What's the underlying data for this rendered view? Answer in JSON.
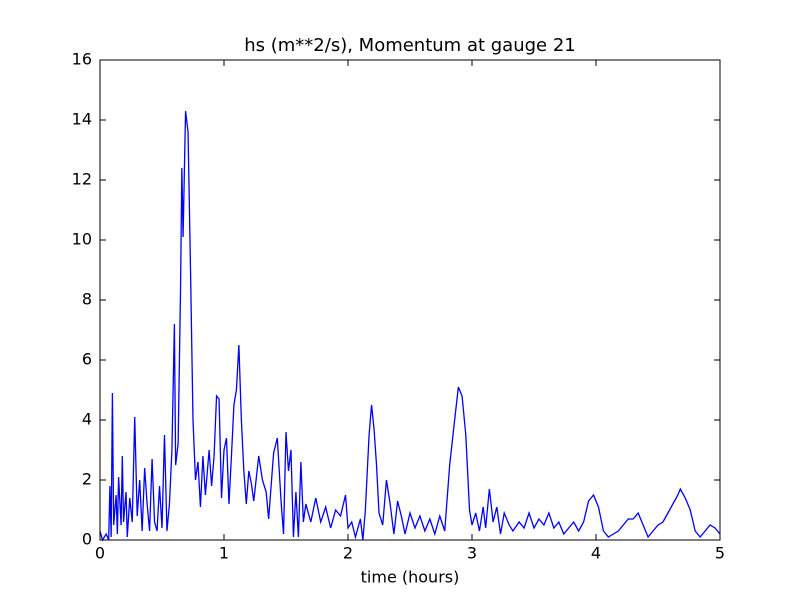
{
  "chart_data": {
    "type": "line",
    "title": "hs (m**2/s), Momentum at gauge 21",
    "xlabel": "time (hours)",
    "x": [
      0.0,
      0.02,
      0.05,
      0.07,
      0.08,
      0.09,
      0.1,
      0.11,
      0.13,
      0.14,
      0.15,
      0.17,
      0.18,
      0.19,
      0.21,
      0.22,
      0.24,
      0.26,
      0.28,
      0.3,
      0.32,
      0.34,
      0.36,
      0.38,
      0.4,
      0.42,
      0.44,
      0.46,
      0.48,
      0.5,
      0.52,
      0.54,
      0.56,
      0.58,
      0.6,
      0.61,
      0.63,
      0.65,
      0.66,
      0.67,
      0.69,
      0.71,
      0.73,
      0.75,
      0.77,
      0.79,
      0.81,
      0.83,
      0.85,
      0.88,
      0.9,
      0.92,
      0.94,
      0.96,
      0.98,
      1.0,
      1.02,
      1.04,
      1.06,
      1.08,
      1.1,
      1.12,
      1.14,
      1.16,
      1.18,
      1.2,
      1.22,
      1.24,
      1.28,
      1.31,
      1.34,
      1.36,
      1.4,
      1.43,
      1.46,
      1.48,
      1.5,
      1.52,
      1.54,
      1.56,
      1.58,
      1.6,
      1.62,
      1.64,
      1.66,
      1.7,
      1.74,
      1.78,
      1.82,
      1.86,
      1.9,
      1.94,
      1.98,
      2.0,
      2.03,
      2.06,
      2.1,
      2.12,
      2.14,
      2.17,
      2.19,
      2.21,
      2.23,
      2.25,
      2.28,
      2.31,
      2.34,
      2.37,
      2.4,
      2.43,
      2.46,
      2.5,
      2.54,
      2.58,
      2.62,
      2.66,
      2.7,
      2.74,
      2.78,
      2.82,
      2.86,
      2.89,
      2.92,
      2.95,
      2.98,
      3.0,
      3.03,
      3.06,
      3.09,
      3.11,
      3.14,
      3.17,
      3.2,
      3.23,
      3.26,
      3.3,
      3.33,
      3.38,
      3.42,
      3.46,
      3.5,
      3.54,
      3.58,
      3.62,
      3.66,
      3.7,
      3.74,
      3.78,
      3.82,
      3.86,
      3.9,
      3.94,
      3.98,
      4.02,
      4.06,
      4.1,
      4.14,
      4.18,
      4.22,
      4.26,
      4.3,
      4.34,
      4.38,
      4.42,
      4.46,
      4.5,
      4.54,
      4.58,
      4.62,
      4.66,
      4.68,
      4.72,
      4.76,
      4.8,
      4.84,
      4.88,
      4.92,
      4.96,
      5.0
    ],
    "series": [
      {
        "color": "#0000ff",
        "values": [
          0.3,
          0.0,
          0.2,
          0.0,
          1.8,
          0.1,
          4.9,
          0.5,
          1.5,
          0.2,
          2.1,
          0.5,
          2.8,
          0.6,
          1.6,
          0.1,
          1.4,
          0.6,
          4.1,
          0.8,
          2.0,
          0.3,
          2.4,
          1.2,
          0.3,
          2.7,
          0.6,
          0.3,
          1.8,
          0.4,
          3.5,
          0.3,
          1.2,
          3.0,
          7.2,
          2.5,
          3.2,
          8.5,
          12.4,
          10.1,
          14.3,
          13.6,
          9.0,
          4.0,
          2.0,
          2.6,
          1.1,
          2.8,
          1.5,
          3.0,
          1.8,
          2.8,
          4.8,
          4.7,
          1.4,
          3.0,
          3.4,
          1.2,
          2.8,
          4.5,
          5.0,
          6.5,
          4.0,
          2.3,
          1.2,
          2.3,
          1.9,
          1.3,
          2.8,
          2.0,
          1.6,
          0.7,
          2.9,
          3.4,
          1.3,
          0.2,
          3.6,
          2.3,
          3.0,
          0.1,
          1.6,
          0.1,
          2.6,
          0.6,
          1.2,
          0.6,
          1.4,
          0.6,
          1.1,
          0.4,
          1.0,
          0.8,
          1.5,
          0.4,
          0.6,
          0.1,
          0.7,
          0.0,
          1.0,
          3.5,
          4.5,
          3.7,
          2.5,
          0.9,
          0.5,
          2.0,
          1.2,
          0.2,
          1.3,
          0.8,
          0.2,
          0.9,
          0.4,
          0.8,
          0.3,
          0.7,
          0.2,
          0.8,
          0.3,
          2.5,
          4.0,
          5.1,
          4.8,
          3.5,
          1.0,
          0.5,
          0.9,
          0.3,
          1.1,
          0.4,
          1.7,
          0.6,
          1.1,
          0.2,
          0.9,
          0.5,
          0.3,
          0.6,
          0.4,
          0.9,
          0.4,
          0.7,
          0.5,
          0.9,
          0.4,
          0.6,
          0.2,
          0.4,
          0.6,
          0.3,
          0.6,
          1.3,
          1.5,
          1.1,
          0.3,
          0.1,
          0.2,
          0.3,
          0.5,
          0.7,
          0.7,
          0.9,
          0.5,
          0.1,
          0.3,
          0.5,
          0.6,
          0.9,
          1.2,
          1.5,
          1.7,
          1.4,
          1.0,
          0.3,
          0.1,
          0.3,
          0.5,
          0.4,
          0.2
        ]
      }
    ],
    "reference_line": {
      "value": 0,
      "color": "#000000",
      "style": "dashed"
    },
    "xlim": [
      0,
      5
    ],
    "xticks": [
      0,
      1,
      2,
      3,
      4,
      5
    ],
    "ylim": [
      0,
      16
    ],
    "yticks": [
      0,
      2,
      4,
      6,
      8,
      10,
      12,
      14,
      16
    ]
  }
}
